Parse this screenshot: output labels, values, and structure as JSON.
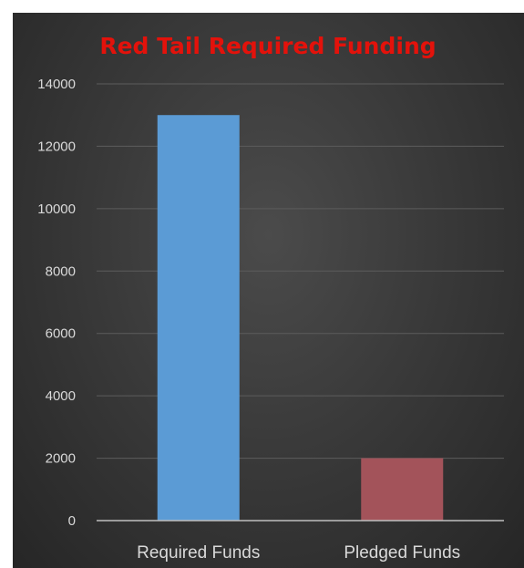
{
  "chart_data": {
    "type": "bar",
    "title": "Red Tail Required Funding",
    "categories": [
      "Required Funds",
      "Pledged Funds"
    ],
    "values": [
      13000,
      2000
    ],
    "xlabel": "",
    "ylabel": "",
    "ylim": [
      0,
      14000
    ],
    "yticks": [
      0,
      2000,
      4000,
      6000,
      8000,
      10000,
      12000,
      14000
    ],
    "grid": true,
    "legend": "none"
  },
  "colors": {
    "title": "#e3120b",
    "bars": [
      "#5b9bd5",
      "#a3535a"
    ],
    "gridline": "#5c5c5c",
    "axis": "#bfbfbf",
    "label": "#d9d9d9"
  }
}
